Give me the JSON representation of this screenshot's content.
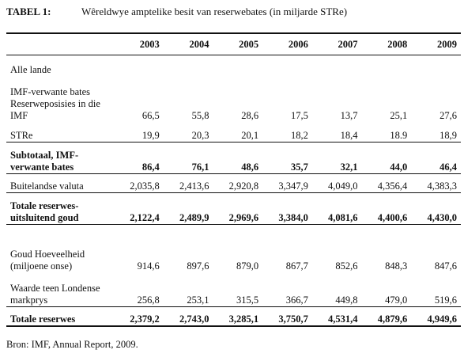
{
  "title": {
    "label": "TABEL 1:",
    "text": "Wêreldwye amptelike besit van reserwebates (in miljarde STRe)"
  },
  "table": {
    "columns": [
      "",
      "2003",
      "2004",
      "2005",
      "2006",
      "2007",
      "2008",
      "2009"
    ],
    "rows": [
      {
        "label": "Alle lande",
        "values": [
          "",
          "",
          "",
          "",
          "",
          "",
          ""
        ]
      },
      {
        "label": "IMF-verwante bates Reserweposisies in die IMF",
        "values": [
          "66,5",
          "55,8",
          "28,6",
          "17,5",
          "13,7",
          "25,1",
          "27,6"
        ]
      },
      {
        "label": "STRe",
        "values": [
          "19,9",
          "20,3",
          "20,1",
          "18,2",
          "18,4",
          "18.9",
          "18,9"
        ]
      },
      {
        "label": "Subtotaal, IMF-verwante bates",
        "values": [
          "86,4",
          "76,1",
          "48,6",
          "35,7",
          "32,1",
          "44,0",
          "46,4"
        ]
      },
      {
        "label": "Buitelandse valuta",
        "values": [
          "2,035,8",
          "2,413,6",
          "2,920,8",
          "3,347,9",
          "4,049,0",
          "4,356,4",
          "4,383,3"
        ]
      },
      {
        "label": "Totale reserwes-uitsluitend goud",
        "values": [
          "2,122,4",
          "2,489,9",
          "2,969,6",
          "3,384,0",
          "4,081,6",
          "4,400,6",
          "4,430,0"
        ]
      },
      {
        "label": "Goud Hoeveelheid (miljoene onse)",
        "values": [
          "914,6",
          "897,6",
          "879,0",
          "867,7",
          "852,6",
          "848,3",
          "847,6"
        ]
      },
      {
        "label": "Waarde teen Londense markprys",
        "values": [
          "256,8",
          "253,1",
          "315,5",
          "366,7",
          "449,8",
          "479,0",
          "519,6"
        ]
      },
      {
        "label": "Totale reserwes",
        "values": [
          "2,379,2",
          "2,743,0",
          "3,285,1",
          "3,750,7",
          "4,531,4",
          "4,879,6",
          "4,949,6"
        ]
      }
    ]
  },
  "source": "Bron: IMF, Annual Report, 2009."
}
